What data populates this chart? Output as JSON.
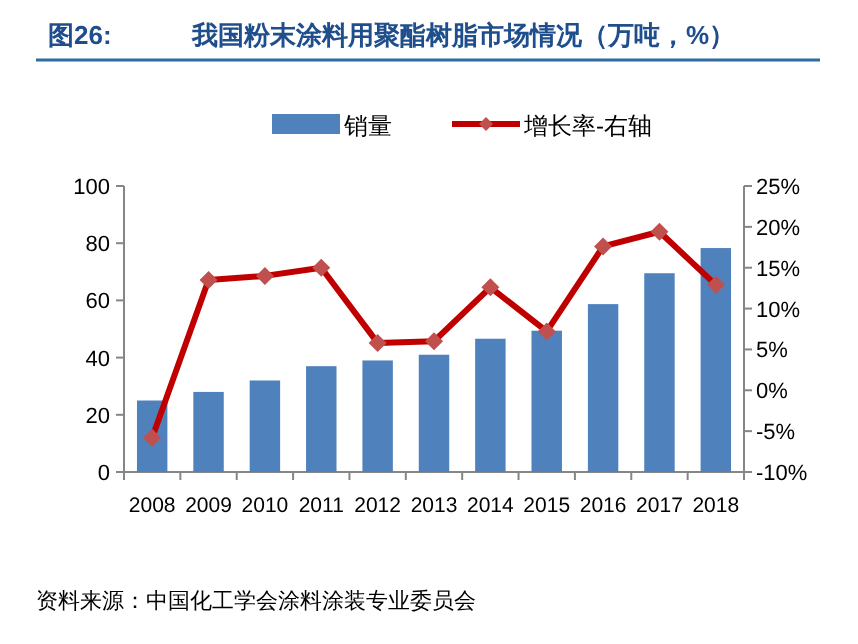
{
  "chart_data": {
    "type": "bar",
    "title": "图26:",
    "subtitle": "我国粉末涂料用聚酯树脂市场情况（万吨，%）",
    "categories": [
      "2008",
      "2009",
      "2010",
      "2011",
      "2012",
      "2013",
      "2014",
      "2015",
      "2016",
      "2017",
      "2018"
    ],
    "series": [
      {
        "name": "销量",
        "color": "#4f81bd",
        "values": [
          25,
          28,
          32,
          37,
          39,
          41,
          46.6,
          49.4,
          58.7,
          69.5,
          78.3
        ]
      },
      {
        "name": "增长率-右轴",
        "type": "line",
        "axis": "y2",
        "color": "#c00000",
        "marker": "diamond",
        "values": [
          -5.8,
          13.5,
          14.0,
          15.0,
          5.8,
          6.0,
          12.6,
          7.2,
          17.6,
          19.4,
          12.9
        ]
      }
    ],
    "ylim": [
      0,
      100
    ],
    "yticks": [
      0,
      20,
      40,
      60,
      80,
      100
    ],
    "y2lim": [
      -10,
      25
    ],
    "y2ticks": [
      {
        "value": -10,
        "label": "-10%"
      },
      {
        "value": -5,
        "label": "-5%"
      },
      {
        "value": 0,
        "label": "0%"
      },
      {
        "value": 5,
        "label": "5%"
      },
      {
        "value": 10,
        "label": "10%"
      },
      {
        "value": 15,
        "label": "15%"
      },
      {
        "value": 20,
        "label": "20%"
      },
      {
        "value": 25,
        "label": "25%"
      }
    ],
    "legend": "top",
    "annotations": [
      "资料来源：中国化工学会涂料涂装专业委员会"
    ]
  }
}
